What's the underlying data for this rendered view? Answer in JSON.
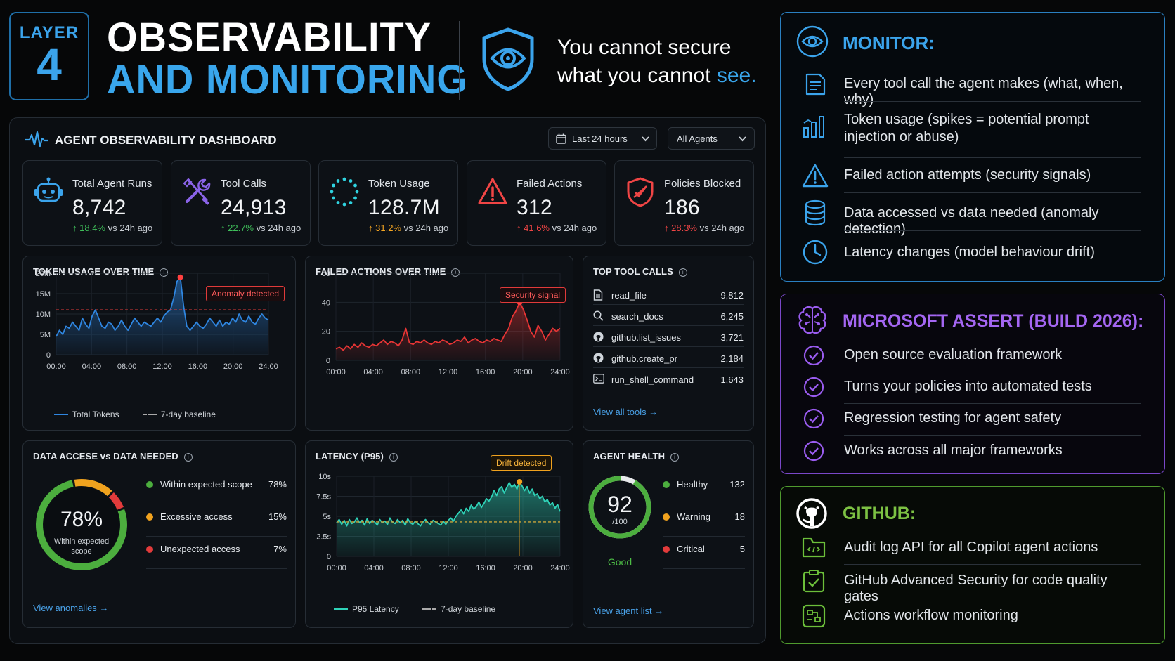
{
  "header": {
    "layer_word": "LAYER",
    "layer_num": "4",
    "title_line1": "OBSERVABILITY",
    "title_line2": "AND MONITORING",
    "tagline_1": "You cannot secure",
    "tagline_2a": "what you cannot ",
    "tagline_2b": "see."
  },
  "dashboard": {
    "title": "AGENT OBSERVABILITY DASHBOARD",
    "time_range": "Last 24 hours",
    "agent_filter": "All Agents",
    "kpis": [
      {
        "label": "Total Agent Runs",
        "value": "8,742",
        "change": "18.4%",
        "suffix": "vs 24h ago",
        "icon": "robot-icon",
        "dir": "up",
        "color": "#3fbf5a"
      },
      {
        "label": "Tool Calls",
        "value": "24,913",
        "change": "22.7%",
        "suffix": "vs 24h ago",
        "icon": "tools-icon",
        "dir": "up",
        "color": "#3fbf5a"
      },
      {
        "label": "Token Usage",
        "value": "128.7M",
        "change": "31.2%",
        "suffix": "vs 24h ago",
        "icon": "token-icon",
        "dir": "up",
        "color": "#f5a623"
      },
      {
        "label": "Failed Actions",
        "value": "312",
        "change": "41.6%",
        "suffix": "vs 24h ago",
        "icon": "warning-icon",
        "dir": "up",
        "color": "#f04545"
      },
      {
        "label": "Policies Blocked",
        "value": "186",
        "change": "28.3%",
        "suffix": "vs 24h ago",
        "icon": "shield-block-icon",
        "dir": "up",
        "color": "#f04545"
      }
    ],
    "token_chart": {
      "title": "TOKEN USAGE OVER TIME",
      "annotation": "Anomaly detected",
      "legend_line": "Total Tokens",
      "legend_baseline": "7-day baseline"
    },
    "failed_chart": {
      "title": "FAILED ACTIONS OVER TIME",
      "annotation": "Security signal"
    },
    "latency_chart": {
      "title": "LATENCY (P95)",
      "annotation": "Drift detected",
      "legend_line": "P95 Latency",
      "legend_baseline": "7-day baseline"
    },
    "top_tools": {
      "title": "TOP TOOL CALLS",
      "items": [
        {
          "name": "read_file",
          "count": "9,812",
          "icon": "file-icon"
        },
        {
          "name": "search_docs",
          "count": "6,245",
          "icon": "search-icon"
        },
        {
          "name": "github.list_issues",
          "count": "3,721",
          "icon": "github-icon"
        },
        {
          "name": "github.create_pr",
          "count": "2,184",
          "icon": "github-icon"
        },
        {
          "name": "run_shell_command",
          "count": "1,643",
          "icon": "terminal-icon"
        }
      ],
      "link": "View all tools"
    },
    "data_access": {
      "title": "DATA ACCESE vs DATA NEEDED",
      "center_value": "78%",
      "center_label_1": "Within expected",
      "center_label_2": "scope",
      "items": [
        {
          "label": "Within expected scope",
          "pct": "78%",
          "color": "#4cae3e"
        },
        {
          "label": "Excessive access",
          "pct": "15%",
          "color": "#f0a21e"
        },
        {
          "label": "Unexpected access",
          "pct": "7%",
          "color": "#e23b3b"
        }
      ],
      "link": "View anomalies"
    },
    "agent_health": {
      "title": "AGENT HEALTH",
      "score": "92",
      "score_max": "/100",
      "status": "Good",
      "items": [
        {
          "label": "Healthy",
          "count": "132",
          "color": "#4cae3e"
        },
        {
          "label": "Warning",
          "count": "18",
          "color": "#f0a21e"
        },
        {
          "label": "Critical",
          "count": "5",
          "color": "#e23b3b"
        }
      ],
      "link": "View agent list"
    }
  },
  "monitor": {
    "heading": "MONITOR:",
    "items": [
      {
        "text": "Every tool call the agent makes (what, when, why)",
        "icon": "document-icon"
      },
      {
        "text": "Token usage (spikes = potential prompt",
        "text2": "injection or abuse)",
        "icon": "bar-chart-icon"
      },
      {
        "text": "Failed action attempts (security signals)",
        "icon": "warning-icon"
      },
      {
        "text": "Data accessed vs data needed (anomaly detection)",
        "icon": "database-icon"
      },
      {
        "text": "Latency changes (model behaviour drift)",
        "icon": "clock-icon"
      }
    ]
  },
  "assert": {
    "heading": "MICROSOFT ASSERT (BUILD 2026):",
    "items": [
      {
        "text": "Open source evaluation framework"
      },
      {
        "text": "Turns your policies into automated tests"
      },
      {
        "text": "Regression testing for agent safety"
      },
      {
        "text": "Works across all major frameworks"
      }
    ]
  },
  "github": {
    "heading": "GITHUB:",
    "items": [
      {
        "text": "Audit log API for all Copilot agent actions",
        "icon": "folder-code-icon"
      },
      {
        "text": "GitHub Advanced Security for code quality gates",
        "icon": "security-check-icon"
      },
      {
        "text": "Actions workflow monitoring",
        "icon": "workflow-icon"
      }
    ]
  },
  "chart_data": [
    {
      "type": "area",
      "title": "TOKEN USAGE OVER TIME",
      "x_ticks": [
        "00:00",
        "04:00",
        "08:00",
        "12:00",
        "16:00",
        "20:00",
        "24:00"
      ],
      "y_ticks": [
        "0",
        "5M",
        "10M",
        "15M",
        "20M"
      ],
      "ylim": [
        0,
        20
      ],
      "unit": "M",
      "baseline": 11,
      "series": [
        {
          "name": "Total Tokens",
          "color": "#2f86e0",
          "values": [
            4.5,
            6,
            5,
            7,
            6.5,
            8,
            7,
            6,
            9,
            7.5,
            6.5,
            9.5,
            11,
            9,
            7,
            6.5,
            8,
            7.5,
            6,
            7,
            8.5,
            7,
            6,
            7.5,
            9,
            8,
            7,
            8,
            7.5,
            7,
            8,
            9,
            8,
            9.5,
            10.5,
            11,
            14,
            18,
            19,
            12,
            7,
            6,
            7,
            8,
            7,
            6.5,
            7.5,
            9,
            8,
            7,
            8.5,
            7,
            8,
            7.5,
            9,
            8,
            10,
            8.5,
            8,
            9.5,
            8,
            7.5,
            9,
            10,
            9,
            8.5
          ]
        }
      ]
    },
    {
      "type": "area",
      "title": "FAILED ACTIONS OVER TIME",
      "x_ticks": [
        "00:00",
        "04:00",
        "08:00",
        "12:00",
        "16:00",
        "20:00",
        "24:00"
      ],
      "y_ticks": [
        "0",
        "20",
        "40",
        "60"
      ],
      "ylim": [
        0,
        60
      ],
      "series": [
        {
          "name": "Failed Actions",
          "color": "#e83535",
          "values": [
            8,
            9,
            7,
            10,
            8,
            11,
            9,
            12,
            10,
            9,
            11,
            10,
            12,
            14,
            11,
            13,
            12,
            10,
            14,
            22,
            12,
            11,
            13,
            12,
            14,
            12,
            11,
            13,
            12,
            14,
            13,
            11,
            12,
            14,
            13,
            16,
            12,
            14,
            15,
            13,
            12,
            14,
            13,
            15,
            14,
            13,
            18,
            22,
            30,
            34,
            40,
            35,
            28,
            20,
            16,
            24,
            20,
            14,
            18,
            22,
            20,
            22
          ]
        }
      ]
    },
    {
      "type": "area",
      "title": "LATENCY (P95)",
      "x_ticks": [
        "00:00",
        "04:00",
        "08:00",
        "12:00",
        "16:00",
        "20:00",
        "24:00"
      ],
      "y_ticks": [
        "0",
        "2.5s",
        "5s",
        "7.5s",
        "10s"
      ],
      "ylim": [
        0,
        10
      ],
      "unit": "s",
      "baseline": 4.3,
      "series": [
        {
          "name": "P95 Latency",
          "color": "#2fd3b8",
          "values": [
            4.2,
            4.6,
            4.0,
            4.5,
            3.8,
            4.6,
            4.1,
            4.3,
            4.8,
            4.2,
            4.5,
            3.9,
            4.7,
            4.1,
            4.5,
            4.3,
            3.9,
            4.6,
            4.2,
            4.4,
            4.0,
            4.8,
            4.3,
            4.1,
            4.6,
            4.2,
            4.5,
            3.9,
            4.7,
            4.2,
            4.0,
            4.4,
            4.1,
            3.8,
            4.3,
            4.6,
            4.2,
            4.0,
            4.5,
            4.3,
            4.1,
            3.9,
            4.4,
            4.0,
            4.5,
            4.8,
            4.4,
            5.0,
            5.4,
            5.8,
            5.3,
            6.0,
            5.6,
            6.4,
            5.9,
            6.2,
            6.8,
            6.1,
            6.6,
            7.2,
            6.9,
            7.4,
            8.2,
            7.6,
            8.4,
            8.7,
            7.9,
            8.6,
            9.2,
            8.6,
            9.0,
            8.4,
            9.3,
            8.8,
            8.2,
            8.7,
            7.9,
            8.4,
            7.6,
            7.8,
            7.2,
            7.5,
            6.8,
            7.1,
            6.4,
            6.7,
            6.0,
            6.5,
            5.6
          ]
        }
      ]
    },
    {
      "type": "pie",
      "title": "DATA ACCESE vs DATA NEEDED",
      "categories": [
        "Within expected scope",
        "Excessive access",
        "Unexpected access"
      ],
      "values": [
        78,
        15,
        7
      ]
    }
  ]
}
